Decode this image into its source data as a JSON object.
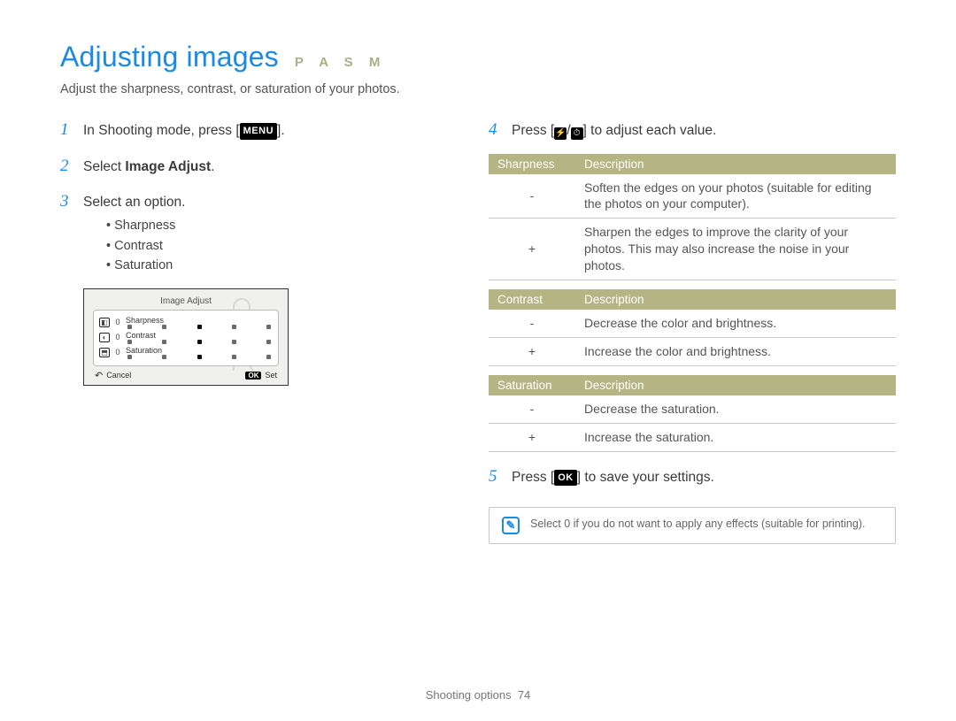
{
  "header": {
    "title": "Adjusting images",
    "modes": "P A S M",
    "subtitle": "Adjust the sharpness, contrast, or saturation of your photos."
  },
  "left": {
    "step1": {
      "pre": "In Shooting mode, press [",
      "btn": "MENU",
      "post": "]."
    },
    "step2": {
      "pre": "Select ",
      "bold": "Image Adjust",
      "post": "."
    },
    "step3": {
      "text": "Select an option.",
      "bullets": [
        "Sharpness",
        "Contrast",
        "Saturation"
      ]
    },
    "lcd": {
      "title": "Image Adjust",
      "rows": [
        {
          "icon": "◧",
          "val": "0",
          "label": "Sharpness"
        },
        {
          "icon": "◐",
          "val": "0",
          "label": "Contrast"
        },
        {
          "icon": "⬒",
          "val": "0",
          "label": "Saturation"
        }
      ],
      "cancel": "Cancel",
      "set": "Set",
      "okKey": "OK"
    }
  },
  "right": {
    "step4": {
      "pre": "Press [",
      "mid": "/",
      "post": "] to adjust each value."
    },
    "tables": [
      {
        "head1": "Sharpness",
        "head2": "Description",
        "rows": [
          {
            "k": "-",
            "v": "Soften the edges on your photos (suitable for editing the photos on your computer)."
          },
          {
            "k": "+",
            "v": "Sharpen the edges to improve the clarity of your photos. This may also increase the noise in your photos."
          }
        ]
      },
      {
        "head1": "Contrast",
        "head2": "Description",
        "rows": [
          {
            "k": "-",
            "v": "Decrease the color and brightness."
          },
          {
            "k": "+",
            "v": "Increase the color and brightness."
          }
        ]
      },
      {
        "head1": "Saturation",
        "head2": "Description",
        "rows": [
          {
            "k": "-",
            "v": "Decrease the saturation."
          },
          {
            "k": "+",
            "v": "Increase the saturation."
          }
        ]
      }
    ],
    "step5": {
      "pre": "Press [",
      "btn": "OK",
      "post": "] to save your settings."
    },
    "note": "Select 0 if you do not want to apply any effects (suitable for printing)."
  },
  "footer": {
    "section": "Shooting options",
    "page": "74"
  }
}
